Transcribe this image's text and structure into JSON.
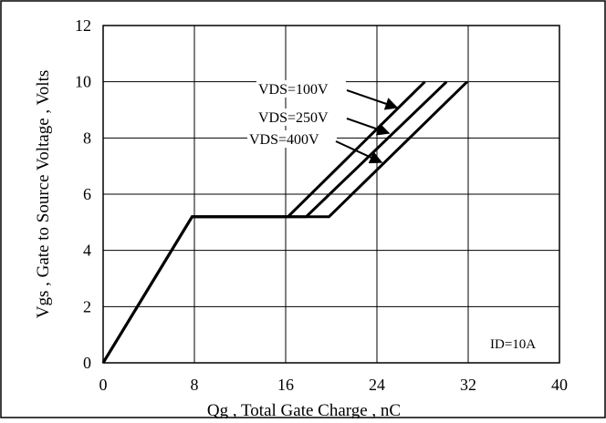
{
  "chart_data": {
    "type": "line",
    "title": "",
    "xlabel": "Qg , Total Gate Charge , nC",
    "ylabel": "Vgs , Gate to Source Voltage , Volts",
    "xlim": [
      0,
      40
    ],
    "ylim": [
      0,
      12
    ],
    "xticks": [
      0,
      8,
      16,
      24,
      32,
      40
    ],
    "yticks": [
      0,
      2,
      4,
      6,
      8,
      10,
      12
    ],
    "x_tick_labels": [
      "0",
      "8",
      "16",
      "24",
      "32",
      "40"
    ],
    "y_tick_labels": [
      "0",
      "2",
      "4",
      "6",
      "8",
      "10",
      "12"
    ],
    "grid": true,
    "series": [
      {
        "name": "VDS=100V",
        "x": [
          0,
          7.8,
          16.2,
          28.2
        ],
        "y": [
          0,
          5.2,
          5.2,
          10
        ]
      },
      {
        "name": "VDS=250V",
        "x": [
          0,
          7.8,
          17.8,
          30.1
        ],
        "y": [
          0,
          5.2,
          5.2,
          10
        ]
      },
      {
        "name": "VDS=400V",
        "x": [
          0,
          7.8,
          19.8,
          31.9
        ],
        "y": [
          0,
          5.2,
          5.2,
          10
        ]
      }
    ],
    "annotations": {
      "condition": "ID=10A"
    }
  }
}
